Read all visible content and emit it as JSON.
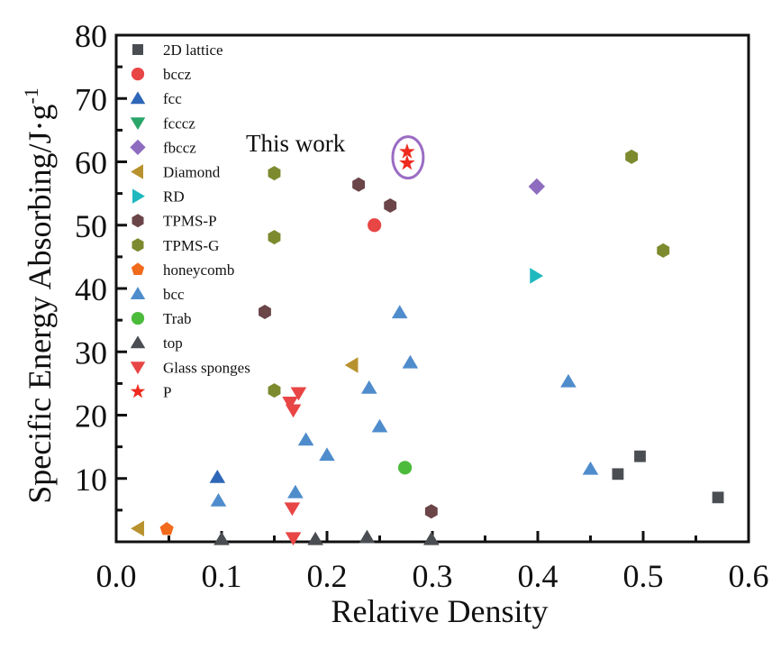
{
  "chart_data": {
    "type": "scatter",
    "title": "",
    "xlabel": "Relative Density",
    "ylabel": "Specific Energy Absorbing/J·g",
    "ylabel_superscript": "-1",
    "xlim": [
      0.0,
      0.6
    ],
    "ylim": [
      0,
      80
    ],
    "x_ticks": [
      0.0,
      0.1,
      0.2,
      0.3,
      0.4,
      0.5,
      0.6
    ],
    "x_tick_labels": [
      "0.0",
      "0.1",
      "0.2",
      "0.3",
      "0.4",
      "0.5",
      "0.6"
    ],
    "x_minor_ticks": [
      0.05,
      0.15,
      0.25,
      0.35,
      0.45,
      0.55
    ],
    "y_ticks": [
      10,
      20,
      30,
      40,
      50,
      60,
      70,
      80
    ],
    "y_tick_labels": [
      "10",
      "20",
      "30",
      "40",
      "50",
      "60",
      "70",
      "80"
    ],
    "y_minor_ticks": [
      5,
      15,
      25,
      35,
      45,
      55,
      65,
      75
    ],
    "grid": false,
    "legend_position": "top-left",
    "annotation": {
      "text": "This work",
      "target_series": "P",
      "ellipse_color": "#9b6cc4"
    },
    "series": [
      {
        "name": "2D lattice",
        "marker": "square",
        "color": "#4a4d52",
        "points": [
          [
            0.476,
            10.7
          ],
          [
            0.497,
            13.5
          ],
          [
            0.571,
            7.0
          ]
        ]
      },
      {
        "name": "bccz",
        "marker": "circle",
        "color": "#e84545",
        "points": [
          [
            0.245,
            50.0
          ]
        ]
      },
      {
        "name": "fcc",
        "marker": "triangle-up",
        "color": "#2e66b8",
        "points": [
          [
            0.096,
            10.2
          ]
        ]
      },
      {
        "name": "fcccz",
        "marker": "triangle-down",
        "color": "#2aa56a",
        "points": []
      },
      {
        "name": "fbccz",
        "marker": "diamond",
        "color": "#8e6cc0",
        "points": [
          [
            0.399,
            56.1
          ]
        ]
      },
      {
        "name": "Diamond",
        "marker": "triangle-left",
        "color": "#b8922e",
        "points": [
          [
            0.021,
            2.1
          ],
          [
            0.224,
            27.9
          ]
        ]
      },
      {
        "name": "RD",
        "marker": "triangle-right",
        "color": "#20b8bf",
        "points": [
          [
            0.398,
            42.0
          ]
        ]
      },
      {
        "name": "TPMS-P",
        "marker": "hexagon",
        "color": "#6b4548",
        "points": [
          [
            0.141,
            36.3
          ],
          [
            0.23,
            56.4
          ],
          [
            0.26,
            53.1
          ],
          [
            0.299,
            4.8
          ]
        ]
      },
      {
        "name": "TPMS-G",
        "marker": "hexagon",
        "color": "#7d8a2e",
        "points": [
          [
            0.15,
            58.2
          ],
          [
            0.15,
            48.1
          ],
          [
            0.15,
            23.9
          ],
          [
            0.489,
            60.8
          ],
          [
            0.519,
            46.0
          ]
        ]
      },
      {
        "name": "honeycomb",
        "marker": "pentagon",
        "color": "#f26a1b",
        "points": [
          [
            0.048,
            2.0
          ]
        ]
      },
      {
        "name": "bcc",
        "marker": "triangle-up",
        "color": "#4f8ccc",
        "points": [
          [
            0.097,
            6.5
          ],
          [
            0.17,
            7.8
          ],
          [
            0.18,
            16.1
          ],
          [
            0.2,
            13.7
          ],
          [
            0.24,
            24.3
          ],
          [
            0.25,
            18.2
          ],
          [
            0.269,
            36.2
          ],
          [
            0.279,
            28.3
          ],
          [
            0.429,
            25.3
          ],
          [
            0.45,
            11.5
          ]
        ]
      },
      {
        "name": "Trab",
        "marker": "circle",
        "color": "#4cbb3c",
        "points": [
          [
            0.274,
            11.7
          ]
        ]
      },
      {
        "name": "top",
        "marker": "triangle-up",
        "color": "#4a4d52",
        "points": [
          [
            0.1,
            0.4
          ],
          [
            0.189,
            0.4
          ],
          [
            0.238,
            0.7
          ],
          [
            0.299,
            0.4
          ]
        ]
      },
      {
        "name": "Glass sponges",
        "marker": "triangle-down",
        "color": "#e84545",
        "points": [
          [
            0.173,
            23.5
          ],
          [
            0.165,
            22.0
          ],
          [
            0.168,
            20.8
          ],
          [
            0.167,
            5.3
          ],
          [
            0.168,
            0.6
          ]
        ]
      },
      {
        "name": "P",
        "marker": "star",
        "color": "#ee2a1e",
        "points": [
          [
            0.276,
            61.6
          ],
          [
            0.276,
            59.8
          ]
        ]
      }
    ]
  }
}
